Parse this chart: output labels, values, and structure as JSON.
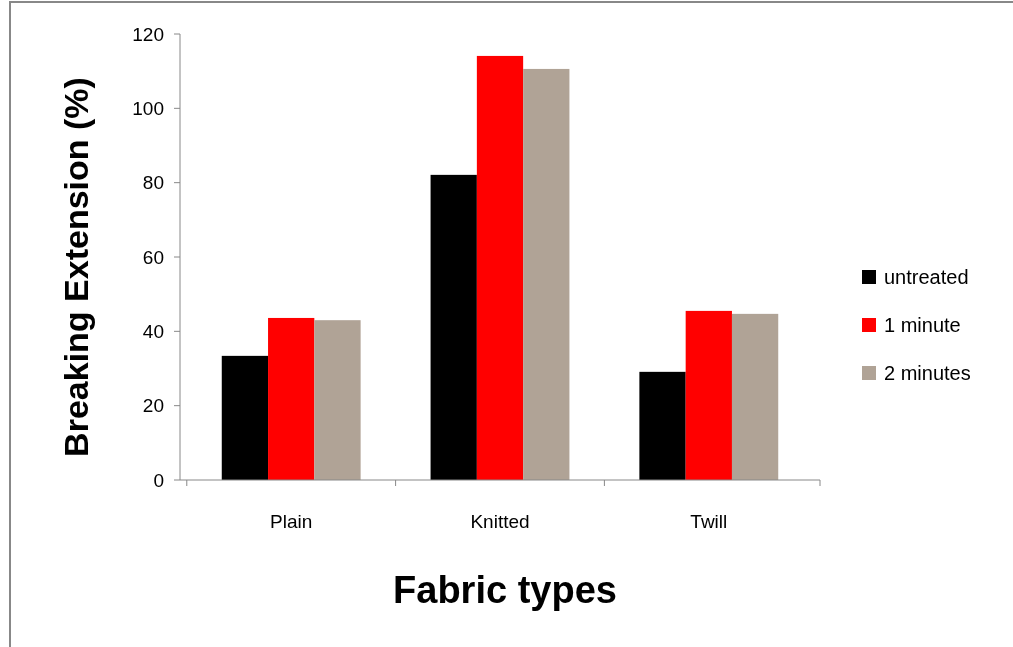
{
  "chart_data": {
    "type": "bar",
    "xlabel": "Fabric types",
    "ylabel": "Breaking Extension (%)",
    "categories": [
      "Plain",
      "Knitted",
      "Twill"
    ],
    "series": [
      {
        "name": "untreated",
        "color": "#000000",
        "values": [
          33.4,
          82.1,
          29.1
        ]
      },
      {
        "name": "1 minute",
        "color": "#ff0000",
        "values": [
          43.6,
          114.1,
          45.5
        ]
      },
      {
        "name": "2 minutes",
        "color": "#b0a396",
        "values": [
          43.0,
          110.6,
          44.7
        ]
      }
    ],
    "ylim": [
      0,
      120
    ],
    "yticks": [
      0,
      20,
      40,
      60,
      80,
      100,
      120
    ],
    "grid": false,
    "legend": "right"
  }
}
